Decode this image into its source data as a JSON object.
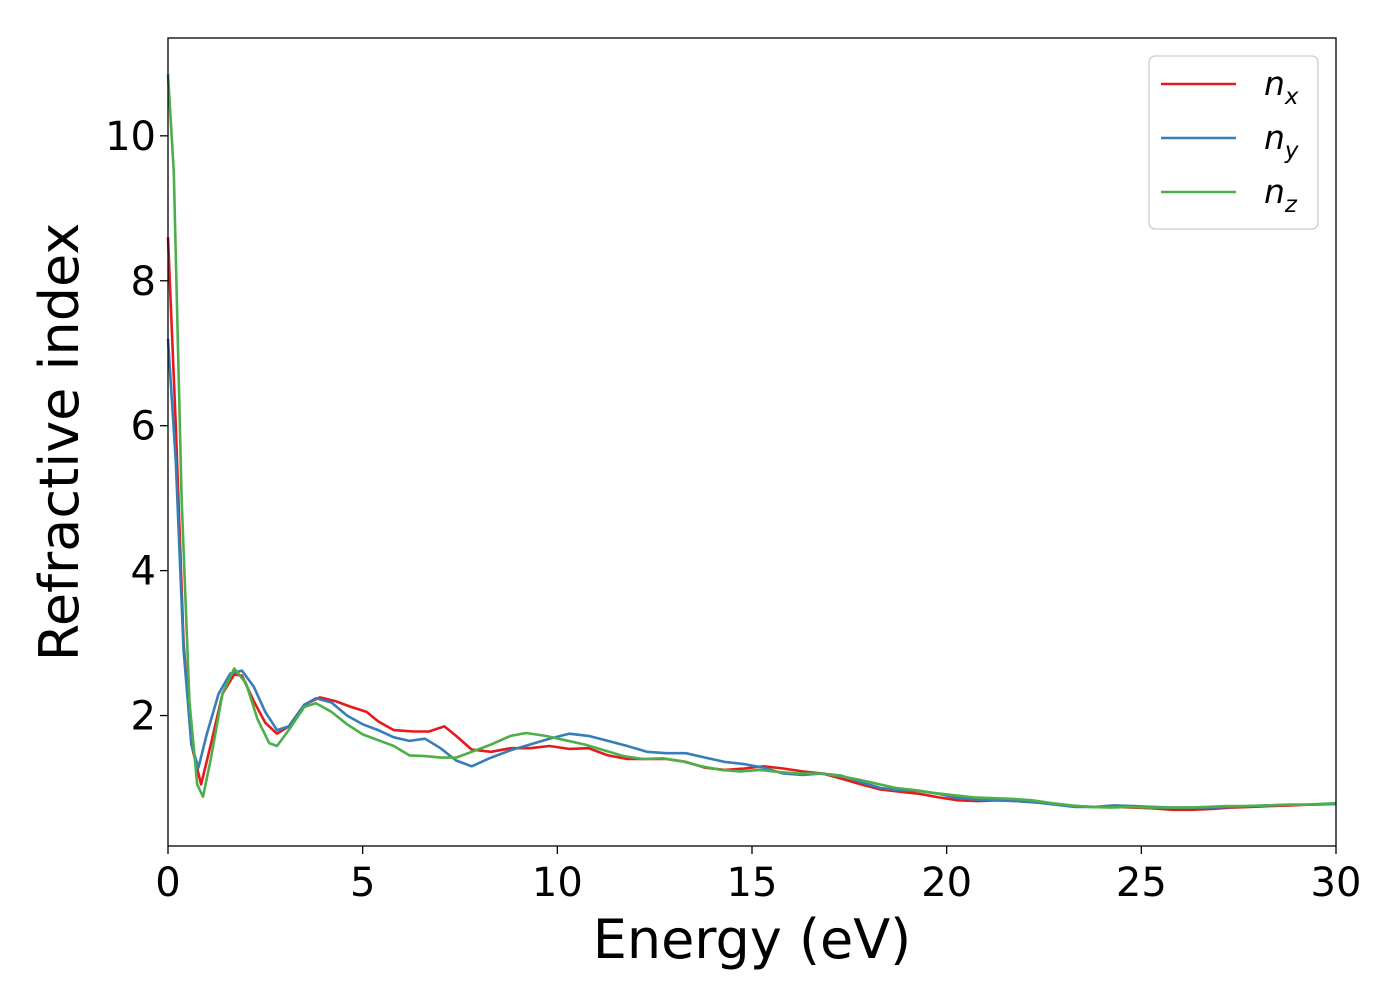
{
  "chart_data": {
    "type": "line",
    "title": "",
    "xlabel": "Energy (eV)",
    "ylabel": "Refractive index",
    "xlim": [
      0,
      30
    ],
    "ylim": [
      0.2,
      11.35
    ],
    "xticks": [
      0,
      5,
      10,
      15,
      20,
      25,
      30
    ],
    "xtick_labels": [
      "0",
      "5",
      "10",
      "15",
      "20",
      "25",
      "30"
    ],
    "yticks": [
      2,
      4,
      6,
      8,
      10
    ],
    "ytick_labels": [
      "2",
      "4",
      "6",
      "8",
      "10"
    ],
    "grid": false,
    "legend_position": "top-right",
    "series": [
      {
        "name": "n_x",
        "label_main": "n",
        "label_sub": "x",
        "color": "#e41a1c",
        "points": [
          [
            0,
            8.6
          ],
          [
            0.2,
            6.0
          ],
          [
            0.4,
            3.0
          ],
          [
            0.6,
            1.6
          ],
          [
            0.85,
            1.05
          ],
          [
            1.1,
            1.6
          ],
          [
            1.4,
            2.3
          ],
          [
            1.7,
            2.57
          ],
          [
            1.9,
            2.55
          ],
          [
            2.2,
            2.2
          ],
          [
            2.5,
            1.9
          ],
          [
            2.8,
            1.75
          ],
          [
            3.1,
            1.85
          ],
          [
            3.5,
            2.15
          ],
          [
            3.9,
            2.25
          ],
          [
            4.3,
            2.2
          ],
          [
            4.7,
            2.12
          ],
          [
            5.1,
            2.05
          ],
          [
            5.4,
            1.92
          ],
          [
            5.8,
            1.8
          ],
          [
            6.3,
            1.78
          ],
          [
            6.7,
            1.78
          ],
          [
            7.1,
            1.85
          ],
          [
            7.4,
            1.72
          ],
          [
            7.8,
            1.53
          ],
          [
            8.3,
            1.5
          ],
          [
            8.8,
            1.55
          ],
          [
            9.3,
            1.55
          ],
          [
            9.8,
            1.58
          ],
          [
            10.3,
            1.54
          ],
          [
            10.8,
            1.55
          ],
          [
            11.3,
            1.45
          ],
          [
            11.8,
            1.4
          ],
          [
            12.3,
            1.4
          ],
          [
            12.8,
            1.4
          ],
          [
            13.3,
            1.36
          ],
          [
            13.8,
            1.28
          ],
          [
            14.3,
            1.25
          ],
          [
            14.8,
            1.27
          ],
          [
            15.3,
            1.3
          ],
          [
            15.8,
            1.27
          ],
          [
            16.3,
            1.23
          ],
          [
            16.8,
            1.2
          ],
          [
            17.3,
            1.13
          ],
          [
            17.8,
            1.05
          ],
          [
            18.3,
            0.98
          ],
          [
            18.8,
            0.95
          ],
          [
            19.3,
            0.92
          ],
          [
            19.8,
            0.87
          ],
          [
            20.3,
            0.83
          ],
          [
            20.8,
            0.82
          ],
          [
            21.3,
            0.83
          ],
          [
            21.8,
            0.82
          ],
          [
            22.3,
            0.8
          ],
          [
            22.8,
            0.78
          ],
          [
            23.3,
            0.75
          ],
          [
            23.8,
            0.74
          ],
          [
            24.3,
            0.74
          ],
          [
            24.8,
            0.73
          ],
          [
            25.3,
            0.72
          ],
          [
            25.8,
            0.7
          ],
          [
            26.3,
            0.7
          ],
          [
            26.8,
            0.71
          ],
          [
            27.3,
            0.73
          ],
          [
            27.8,
            0.74
          ],
          [
            28.3,
            0.75
          ],
          [
            28.8,
            0.76
          ],
          [
            29.3,
            0.77
          ],
          [
            30,
            0.78
          ]
        ]
      },
      {
        "name": "n_y",
        "label_main": "n",
        "label_sub": "y",
        "color": "#377eb8",
        "points": [
          [
            0,
            7.2
          ],
          [
            0.2,
            5.5
          ],
          [
            0.4,
            2.9
          ],
          [
            0.6,
            1.6
          ],
          [
            0.78,
            1.28
          ],
          [
            1.0,
            1.75
          ],
          [
            1.3,
            2.3
          ],
          [
            1.6,
            2.58
          ],
          [
            1.9,
            2.62
          ],
          [
            2.2,
            2.4
          ],
          [
            2.5,
            2.05
          ],
          [
            2.8,
            1.8
          ],
          [
            3.1,
            1.85
          ],
          [
            3.5,
            2.15
          ],
          [
            3.8,
            2.24
          ],
          [
            4.2,
            2.18
          ],
          [
            4.6,
            2.0
          ],
          [
            5.0,
            1.88
          ],
          [
            5.4,
            1.8
          ],
          [
            5.8,
            1.7
          ],
          [
            6.2,
            1.65
          ],
          [
            6.6,
            1.68
          ],
          [
            7.0,
            1.55
          ],
          [
            7.4,
            1.38
          ],
          [
            7.8,
            1.3
          ],
          [
            8.3,
            1.42
          ],
          [
            8.8,
            1.52
          ],
          [
            9.3,
            1.6
          ],
          [
            9.8,
            1.68
          ],
          [
            10.3,
            1.75
          ],
          [
            10.8,
            1.72
          ],
          [
            11.3,
            1.65
          ],
          [
            11.8,
            1.58
          ],
          [
            12.3,
            1.5
          ],
          [
            12.8,
            1.48
          ],
          [
            13.3,
            1.48
          ],
          [
            13.8,
            1.42
          ],
          [
            14.3,
            1.36
          ],
          [
            14.8,
            1.33
          ],
          [
            15.3,
            1.28
          ],
          [
            15.8,
            1.2
          ],
          [
            16.3,
            1.18
          ],
          [
            16.8,
            1.2
          ],
          [
            17.3,
            1.17
          ],
          [
            17.8,
            1.08
          ],
          [
            18.3,
            1.0
          ],
          [
            18.8,
            0.97
          ],
          [
            19.3,
            0.96
          ],
          [
            19.8,
            0.92
          ],
          [
            20.3,
            0.86
          ],
          [
            20.8,
            0.84
          ],
          [
            21.3,
            0.83
          ],
          [
            21.8,
            0.82
          ],
          [
            22.3,
            0.8
          ],
          [
            22.8,
            0.77
          ],
          [
            23.3,
            0.74
          ],
          [
            23.8,
            0.74
          ],
          [
            24.3,
            0.76
          ],
          [
            24.8,
            0.75
          ],
          [
            25.3,
            0.74
          ],
          [
            25.8,
            0.73
          ],
          [
            26.3,
            0.73
          ],
          [
            26.8,
            0.73
          ],
          [
            27.3,
            0.74
          ],
          [
            27.8,
            0.75
          ],
          [
            28.3,
            0.76
          ],
          [
            28.8,
            0.77
          ],
          [
            29.3,
            0.77
          ],
          [
            30,
            0.78
          ]
        ]
      },
      {
        "name": "n_z",
        "label_main": "n",
        "label_sub": "z",
        "color": "#4daf4a",
        "points": [
          [
            0,
            10.85
          ],
          [
            0.15,
            9.5
          ],
          [
            0.35,
            5.0
          ],
          [
            0.55,
            2.2
          ],
          [
            0.75,
            1.05
          ],
          [
            0.9,
            0.88
          ],
          [
            1.1,
            1.4
          ],
          [
            1.4,
            2.3
          ],
          [
            1.7,
            2.65
          ],
          [
            2.0,
            2.45
          ],
          [
            2.3,
            1.95
          ],
          [
            2.6,
            1.62
          ],
          [
            2.8,
            1.58
          ],
          [
            3.1,
            1.8
          ],
          [
            3.5,
            2.12
          ],
          [
            3.8,
            2.17
          ],
          [
            4.2,
            2.05
          ],
          [
            4.6,
            1.88
          ],
          [
            5.0,
            1.74
          ],
          [
            5.4,
            1.66
          ],
          [
            5.8,
            1.58
          ],
          [
            6.2,
            1.45
          ],
          [
            6.6,
            1.44
          ],
          [
            7.0,
            1.42
          ],
          [
            7.4,
            1.42
          ],
          [
            7.8,
            1.5
          ],
          [
            8.3,
            1.6
          ],
          [
            8.8,
            1.72
          ],
          [
            9.2,
            1.76
          ],
          [
            9.7,
            1.72
          ],
          [
            10.2,
            1.66
          ],
          [
            10.7,
            1.6
          ],
          [
            11.2,
            1.52
          ],
          [
            11.7,
            1.44
          ],
          [
            12.2,
            1.4
          ],
          [
            12.7,
            1.41
          ],
          [
            13.2,
            1.37
          ],
          [
            13.7,
            1.3
          ],
          [
            14.2,
            1.25
          ],
          [
            14.7,
            1.23
          ],
          [
            15.2,
            1.25
          ],
          [
            15.7,
            1.22
          ],
          [
            16.2,
            1.2
          ],
          [
            16.7,
            1.2
          ],
          [
            17.2,
            1.17
          ],
          [
            17.7,
            1.12
          ],
          [
            18.2,
            1.06
          ],
          [
            18.7,
            1.0
          ],
          [
            19.2,
            0.97
          ],
          [
            19.7,
            0.93
          ],
          [
            20.2,
            0.9
          ],
          [
            20.7,
            0.87
          ],
          [
            21.2,
            0.86
          ],
          [
            21.7,
            0.85
          ],
          [
            22.2,
            0.83
          ],
          [
            22.7,
            0.79
          ],
          [
            23.2,
            0.76
          ],
          [
            23.7,
            0.74
          ],
          [
            24.2,
            0.73
          ],
          [
            24.7,
            0.74
          ],
          [
            25.2,
            0.73
          ],
          [
            25.7,
            0.73
          ],
          [
            26.2,
            0.73
          ],
          [
            26.7,
            0.74
          ],
          [
            27.2,
            0.75
          ],
          [
            27.7,
            0.75
          ],
          [
            28.2,
            0.76
          ],
          [
            28.7,
            0.77
          ],
          [
            29.2,
            0.77
          ],
          [
            30,
            0.79
          ]
        ]
      }
    ]
  }
}
